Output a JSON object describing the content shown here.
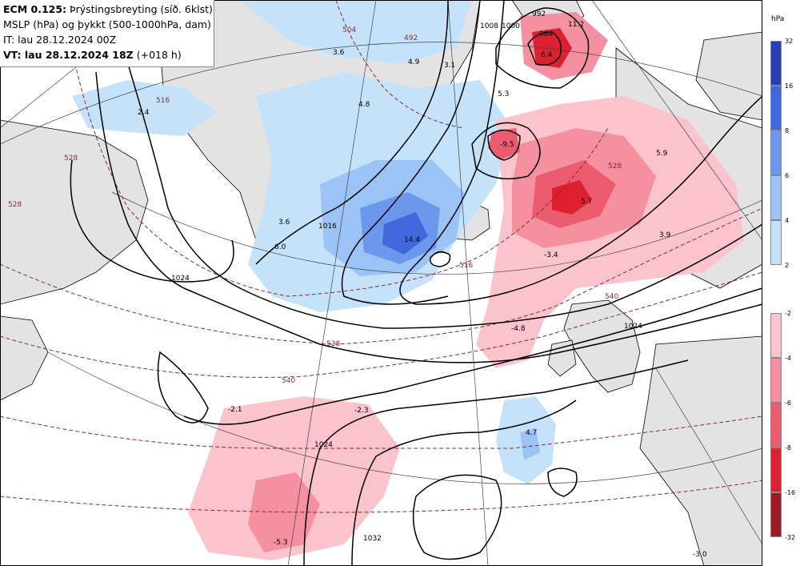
{
  "header": {
    "model": "ECM 0.125:",
    "title_rest": "Þrýstingsbreyting (síð. 6klst)",
    "line2": "MSLP (hPa) og þykkt (500-1000hPa, dam)",
    "line3": "IT: lau 28.12.2024 00Z",
    "vt_label": "VT: lau 28.12.2024 18Z",
    "vt_extra": "(+018 h)"
  },
  "legend": {
    "unit": "hPa",
    "positive": [
      {
        "label": "32",
        "color": "#2a3fb5"
      },
      {
        "label": "16",
        "color": "#3f68dc"
      },
      {
        "label": "8",
        "color": "#6b97ec"
      },
      {
        "label": "6",
        "color": "#9cc3f5"
      },
      {
        "label": "4",
        "color": "#c4e3fb"
      },
      {
        "label": "2",
        "color": ""
      }
    ],
    "negative": [
      {
        "label": "-2",
        "color": "#fbc3cc"
      },
      {
        "label": "-4",
        "color": "#f4909f"
      },
      {
        "label": "-6",
        "color": "#ea5c6e"
      },
      {
        "label": "-8",
        "color": "#dc2030"
      },
      {
        "label": "-16",
        "color": "#9b1a24"
      },
      {
        "label": "-32",
        "color": ""
      }
    ]
  },
  "map": {
    "colors": {
      "land": "#e3e3e3",
      "sea": "#ffffff",
      "isobar": "#000000",
      "thickness": "#8b2a34",
      "grid": "#444444"
    },
    "isobar_labels": [
      "992",
      "984",
      "1016",
      "1008",
      "1000",
      "1024",
      "1024",
      "1032",
      "1024"
    ],
    "thickness_labels": [
      "528",
      "504",
      "516",
      "528",
      "540",
      "528",
      "516",
      "540",
      "528",
      "492"
    ],
    "change_labels": [
      "11.2",
      "5.3",
      "3.6",
      "4.9",
      "3.1",
      "4.8",
      "2.4",
      "6.0",
      "14.4",
      "5.7",
      "5.9",
      "3.9",
      "-4.8",
      "-2.1",
      "-2.3",
      "4.7",
      "-5.3",
      "-3.0",
      "-9.5",
      "-3.4",
      "6.4",
      "3.6"
    ]
  }
}
